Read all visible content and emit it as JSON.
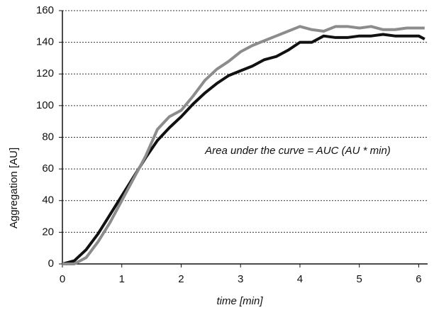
{
  "chart_data": {
    "type": "line",
    "x_label": "time [min]",
    "y_label": "Aggregation [AU]",
    "annotation": "Area under the curve = AUC (AU * min)",
    "x": [
      0,
      0.2,
      0.4,
      0.6,
      0.8,
      1.0,
      1.2,
      1.4,
      1.6,
      1.8,
      2.0,
      2.2,
      2.4,
      2.6,
      2.8,
      3.0,
      3.2,
      3.4,
      3.6,
      3.8,
      4.0,
      4.2,
      4.4,
      4.6,
      4.8,
      5.0,
      5.2,
      5.4,
      5.6,
      5.8,
      6.0,
      6.1
    ],
    "series": [
      {
        "color": "#111111",
        "values": [
          0,
          2,
          9,
          19,
          31,
          43,
          55,
          67,
          78,
          86,
          93,
          101,
          108,
          114,
          119,
          122,
          125,
          129,
          131,
          135,
          140,
          140,
          144,
          143,
          143,
          144,
          144,
          145,
          144,
          144,
          144,
          142
        ]
      },
      {
        "color": "#8c8c8c",
        "values": [
          0,
          0,
          4,
          14,
          26,
          40,
          54,
          68,
          85,
          93,
          97,
          106,
          116,
          123,
          128,
          134,
          138,
          141,
          144,
          147,
          150,
          148,
          147,
          150,
          150,
          149,
          150,
          148,
          148,
          149,
          149,
          149
        ]
      }
    ],
    "xlim": [
      0,
      6.15
    ],
    "ylim": [
      0,
      160
    ],
    "xticks": [
      0,
      1,
      2,
      3,
      4,
      5,
      6
    ],
    "yticks": [
      0,
      20,
      40,
      60,
      80,
      100,
      120,
      140,
      160
    ],
    "grid": true
  }
}
